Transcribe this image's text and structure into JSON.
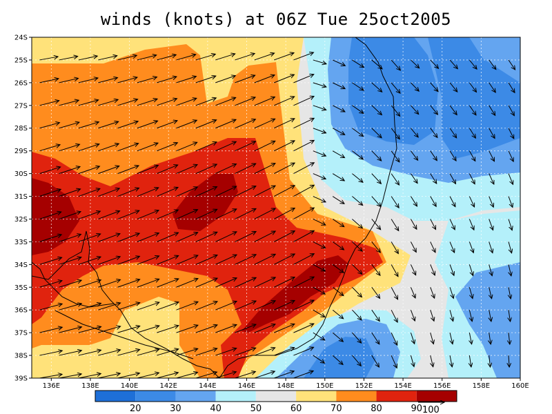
{
  "title": "winds (knots) at 06Z Tue 25oct2005",
  "chart_data": {
    "type": "heatmap",
    "title": "winds (knots) at 06Z Tue 25oct2005",
    "lon_range": [
      135,
      160
    ],
    "lat_range": [
      -39,
      -24
    ],
    "x_ticks": [
      "136E",
      "138E",
      "140E",
      "142E",
      "144E",
      "146E",
      "148E",
      "150E",
      "152E",
      "154E",
      "156E",
      "158E",
      "160E"
    ],
    "y_ticks": [
      "24S",
      "25S",
      "26S",
      "27S",
      "28S",
      "29S",
      "30S",
      "31S",
      "32S",
      "33S",
      "34S",
      "35S",
      "36S",
      "37S",
      "38S",
      "39S"
    ],
    "grid": true,
    "colorbar": {
      "labels": [
        "20",
        "30",
        "40",
        "50",
        "60",
        "70",
        "80",
        "90"
      ],
      "colors": [
        "#1e6fd8",
        "#3c8ae6",
        "#64a5f0",
        "#b4f0fa",
        "#e6e6e6",
        "#ffe27a",
        "#ff8c1e",
        "#e0230e",
        "#a50000"
      ]
    },
    "vector_reference": {
      "value": "100"
    },
    "features": [
      "wind speed contours",
      "wind vectors",
      "coastline"
    ]
  }
}
